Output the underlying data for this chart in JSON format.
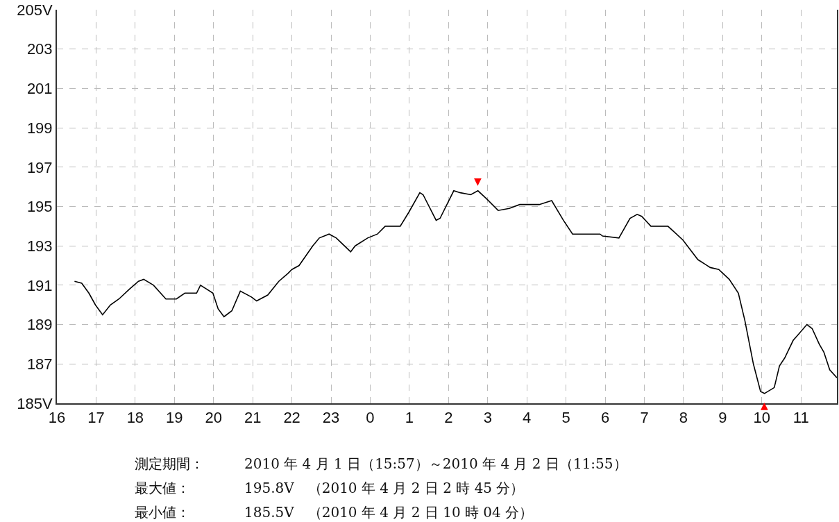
{
  "chart_data": {
    "type": "line",
    "x": [
      "2010-04-01T16:27",
      "2010-04-01T16:38",
      "2010-04-01T16:49",
      "2010-04-01T16:59",
      "2010-04-01T17:10",
      "2010-04-01T17:22",
      "2010-04-01T17:35",
      "2010-04-01T17:51",
      "2010-04-01T18:05",
      "2010-04-01T18:13",
      "2010-04-01T18:28",
      "2010-04-01T18:47",
      "2010-04-01T19:03",
      "2010-04-01T19:16",
      "2010-04-01T19:34",
      "2010-04-01T19:40",
      "2010-04-01T19:59",
      "2010-04-01T20:07",
      "2010-04-01T20:16",
      "2010-04-01T20:28",
      "2010-04-01T20:41",
      "2010-04-01T20:58",
      "2010-04-01T21:06",
      "2010-04-01T21:23",
      "2010-04-01T21:40",
      "2010-04-01T21:54",
      "2010-04-01T22:00",
      "2010-04-01T22:11",
      "2010-04-01T22:32",
      "2010-04-01T22:42",
      "2010-04-01T22:57",
      "2010-04-01T23:08",
      "2010-04-01T23:30",
      "2010-04-01T23:37",
      "2010-04-01T23:56",
      "2010-04-02T00:11",
      "2010-04-02T00:23",
      "2010-04-02T00:46",
      "2010-04-02T00:59",
      "2010-04-02T01:16",
      "2010-04-02T01:21",
      "2010-04-02T01:41",
      "2010-04-02T01:47",
      "2010-04-02T02:08",
      "2010-04-02T02:18",
      "2010-04-02T02:34",
      "2010-04-02T02:45",
      "2010-04-02T02:58",
      "2010-04-02T03:16",
      "2010-04-02T03:33",
      "2010-04-02T03:49",
      "2010-04-02T04:19",
      "2010-04-02T04:38",
      "2010-04-02T04:56",
      "2010-04-02T05:10",
      "2010-04-02T05:24",
      "2010-04-02T05:52",
      "2010-04-02T05:56",
      "2010-04-02T06:21",
      "2010-04-02T06:38",
      "2010-04-02T06:49",
      "2010-04-02T06:56",
      "2010-04-02T07:10",
      "2010-04-02T07:36",
      "2010-04-02T07:46",
      "2010-04-02T07:59",
      "2010-04-02T08:22",
      "2010-04-02T08:41",
      "2010-04-02T08:54",
      "2010-04-02T09:10",
      "2010-04-02T09:24",
      "2010-04-02T09:34",
      "2010-04-02T09:47",
      "2010-04-02T09:58",
      "2010-04-02T10:04",
      "2010-04-02T10:19",
      "2010-04-02T10:27",
      "2010-04-02T10:35",
      "2010-04-02T10:48",
      "2010-04-02T10:56",
      "2010-04-02T11:09",
      "2010-04-02T11:17",
      "2010-04-02T11:28",
      "2010-04-02T11:35",
      "2010-04-02T11:44",
      "2010-04-02T11:55"
    ],
    "series": [
      {
        "color": "#000000",
        "values": [
          191.2,
          191.1,
          190.6,
          190.0,
          189.5,
          190.0,
          190.3,
          190.8,
          191.2,
          191.3,
          191.0,
          190.3,
          190.3,
          190.6,
          190.6,
          191.0,
          190.6,
          189.8,
          189.4,
          189.7,
          190.7,
          190.4,
          190.2,
          190.5,
          191.2,
          191.6,
          191.8,
          192.0,
          193.0,
          193.4,
          193.6,
          193.4,
          192.7,
          193.0,
          193.4,
          193.6,
          194.0,
          194.0,
          194.7,
          195.7,
          195.6,
          194.3,
          194.4,
          195.8,
          195.7,
          195.6,
          195.8,
          195.4,
          194.8,
          194.9,
          195.1,
          195.1,
          195.3,
          194.3,
          193.6,
          193.6,
          193.6,
          193.5,
          193.4,
          194.4,
          194.6,
          194.5,
          194.0,
          194.0,
          193.7,
          193.3,
          192.3,
          191.9,
          191.8,
          191.3,
          190.6,
          189.2,
          187.0,
          185.6,
          185.5,
          185.8,
          186.9,
          187.3,
          188.2,
          188.5,
          189.0,
          188.8,
          188.0,
          187.6,
          186.7,
          186.3
        ]
      }
    ],
    "xlim": [
      "2010-04-01T16:00",
      "2010-04-02T11:55"
    ],
    "xticks": [
      {
        "value": "2010-04-01T16:00",
        "label": "16"
      },
      {
        "value": "2010-04-01T17:00",
        "label": "17"
      },
      {
        "value": "2010-04-01T18:00",
        "label": "18"
      },
      {
        "value": "2010-04-01T19:00",
        "label": "19"
      },
      {
        "value": "2010-04-01T20:00",
        "label": "20"
      },
      {
        "value": "2010-04-01T21:00",
        "label": "21"
      },
      {
        "value": "2010-04-01T22:00",
        "label": "22"
      },
      {
        "value": "2010-04-01T23:00",
        "label": "23"
      },
      {
        "value": "2010-04-02T00:00",
        "label": "0"
      },
      {
        "value": "2010-04-02T01:00",
        "label": "1"
      },
      {
        "value": "2010-04-02T02:00",
        "label": "2"
      },
      {
        "value": "2010-04-02T03:00",
        "label": "3"
      },
      {
        "value": "2010-04-02T04:00",
        "label": "4"
      },
      {
        "value": "2010-04-02T05:00",
        "label": "5"
      },
      {
        "value": "2010-04-02T06:00",
        "label": "6"
      },
      {
        "value": "2010-04-02T07:00",
        "label": "7"
      },
      {
        "value": "2010-04-02T08:00",
        "label": "8"
      },
      {
        "value": "2010-04-02T09:00",
        "label": "9"
      },
      {
        "value": "2010-04-02T10:00",
        "label": "10"
      },
      {
        "value": "2010-04-02T11:00",
        "label": "11"
      }
    ],
    "ylim": [
      185,
      205
    ],
    "yticks": [
      {
        "value": 185,
        "label": "185V"
      },
      187,
      189,
      191,
      193,
      195,
      197,
      199,
      201,
      203,
      {
        "value": 205,
        "label": "205V"
      }
    ],
    "grid": true,
    "marker": "none",
    "line_style": "solid",
    "annotations": [
      {
        "text": "▼",
        "x": "2010-04-02T02:45",
        "y": 195.8
      },
      {
        "text": "▲",
        "x": "2010-04-02T10:04",
        "y": 185.5
      },
      "測定期間：",
      "2010 年 4 月 1 日（15:57）～2010 年 4 月 2 日（11:55）",
      "最大値：",
      "195.8V　（2010 年 4 月 2 日 2 時 45 分）",
      "最小値：",
      "185.5V　（2010 年 4 月 2 日 10 時 04 分）"
    ]
  }
}
